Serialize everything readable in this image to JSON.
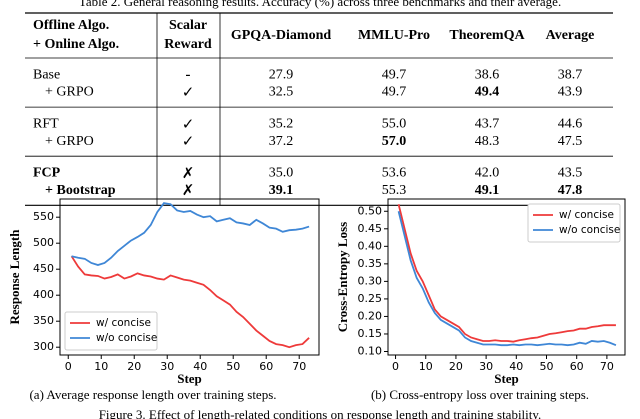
{
  "caption": "Table 2. General reasoning results. Accuracy (%) across three benchmarks and their average.",
  "table": {
    "header": [
      [
        "Offline Algo.",
        "+ Online Algo."
      ],
      [
        "Scalar",
        "Reward"
      ],
      [
        "GPQA-Diamond"
      ],
      [
        "MMLU-Pro"
      ],
      [
        "TheoremQA"
      ],
      [
        "Average"
      ]
    ],
    "rows": [
      [
        "Base",
        "-",
        "27.9",
        "49.7",
        "38.6",
        "38.7"
      ],
      [
        "+ GRPO",
        "✓",
        "32.5",
        "49.7",
        "49.4",
        "43.9"
      ],
      [
        "RFT",
        "✓",
        "35.2",
        "55.0",
        "43.7",
        "44.6"
      ],
      [
        "+ GRPO",
        "✓",
        "37.2",
        "57.0",
        "48.3",
        "47.5"
      ],
      [
        "FCP",
        "✗",
        "35.0",
        "53.6",
        "42.0",
        "43.5"
      ],
      [
        "+ Bootstrap",
        "✗",
        "39.1",
        "55.3",
        "49.1",
        "47.8"
      ]
    ],
    "bold": [
      [
        1,
        4
      ],
      [
        3,
        3
      ],
      [
        4,
        0
      ],
      [
        5,
        0
      ],
      [
        5,
        2
      ],
      [
        5,
        4
      ],
      [
        5,
        5
      ]
    ],
    "groups": [
      2,
      2,
      2
    ]
  },
  "chart_data": [
    {
      "type": "line",
      "caption": "(a) Average response length over training steps.",
      "xlabel": "Step",
      "ylabel": "Response Length",
      "x": [
        1,
        3,
        5,
        7,
        9,
        11,
        13,
        15,
        17,
        19,
        21,
        23,
        25,
        27,
        29,
        31,
        33,
        35,
        37,
        39,
        41,
        43,
        45,
        47,
        49,
        51,
        53,
        55,
        57,
        59,
        61,
        63,
        65,
        67,
        69,
        71,
        73
      ],
      "series": [
        {
          "name": "w/ concise",
          "color": "#ee3a3a",
          "values": [
            475,
            455,
            440,
            438,
            437,
            432,
            435,
            440,
            432,
            436,
            442,
            438,
            436,
            432,
            430,
            438,
            434,
            430,
            428,
            424,
            420,
            410,
            398,
            390,
            382,
            368,
            358,
            345,
            332,
            322,
            312,
            306,
            304,
            300,
            304,
            306,
            318
          ]
        },
        {
          "name": "w/o concise",
          "color": "#3f87d6",
          "values": [
            475,
            472,
            470,
            462,
            458,
            462,
            472,
            485,
            495,
            505,
            512,
            520,
            535,
            560,
            577,
            575,
            563,
            560,
            562,
            555,
            550,
            552,
            542,
            545,
            548,
            540,
            538,
            535,
            545,
            538,
            530,
            528,
            522,
            525,
            526,
            528,
            532
          ]
        }
      ],
      "xlim": [
        -2.5,
        76
      ],
      "xticks": [
        0,
        10,
        20,
        30,
        40,
        50,
        60,
        70
      ],
      "ylim": [
        285,
        585
      ],
      "yticks": [
        300,
        350,
        400,
        450,
        500,
        550
      ],
      "legend": "lower left"
    },
    {
      "type": "line",
      "caption": "(b) Cross-entropy loss over training steps.",
      "xlabel": "Step",
      "ylabel": "Cross-Entropy Loss",
      "x": [
        1,
        3,
        5,
        7,
        9,
        11,
        13,
        15,
        17,
        19,
        21,
        23,
        25,
        27,
        29,
        31,
        33,
        35,
        37,
        39,
        41,
        43,
        45,
        47,
        49,
        51,
        53,
        55,
        57,
        59,
        61,
        63,
        65,
        67,
        69,
        71,
        73
      ],
      "series": [
        {
          "name": "w/ concise",
          "color": "#ee3a3a",
          "values": [
            0.52,
            0.45,
            0.38,
            0.33,
            0.3,
            0.26,
            0.22,
            0.2,
            0.19,
            0.18,
            0.17,
            0.15,
            0.14,
            0.135,
            0.13,
            0.13,
            0.132,
            0.13,
            0.13,
            0.128,
            0.132,
            0.135,
            0.138,
            0.14,
            0.145,
            0.15,
            0.152,
            0.155,
            0.158,
            0.16,
            0.165,
            0.165,
            0.17,
            0.172,
            0.175,
            0.175,
            0.175
          ]
        },
        {
          "name": "w/o concise",
          "color": "#3f87d6",
          "values": [
            0.5,
            0.43,
            0.36,
            0.31,
            0.28,
            0.24,
            0.21,
            0.19,
            0.18,
            0.17,
            0.16,
            0.14,
            0.13,
            0.125,
            0.12,
            0.12,
            0.12,
            0.118,
            0.118,
            0.12,
            0.118,
            0.12,
            0.12,
            0.118,
            0.12,
            0.122,
            0.12,
            0.12,
            0.118,
            0.12,
            0.125,
            0.122,
            0.13,
            0.128,
            0.13,
            0.125,
            0.118
          ]
        }
      ],
      "xlim": [
        -2.5,
        76
      ],
      "xticks": [
        0,
        10,
        20,
        30,
        40,
        50,
        60,
        70
      ],
      "ylim": [
        0.09,
        0.535
      ],
      "yticks": [
        {
          "value": 0.1,
          "label": "0.10"
        },
        0.15,
        {
          "value": 0.2,
          "label": "0.20"
        },
        0.25,
        {
          "value": 0.3,
          "label": "0.30"
        },
        0.35,
        {
          "value": 0.4,
          "label": "0.40"
        },
        0.45,
        {
          "value": 0.5,
          "label": "0.50"
        }
      ],
      "legend": "upper right"
    }
  ],
  "figure_caption": "Figure 3. Effect of length-related conditions on response length and training stability."
}
